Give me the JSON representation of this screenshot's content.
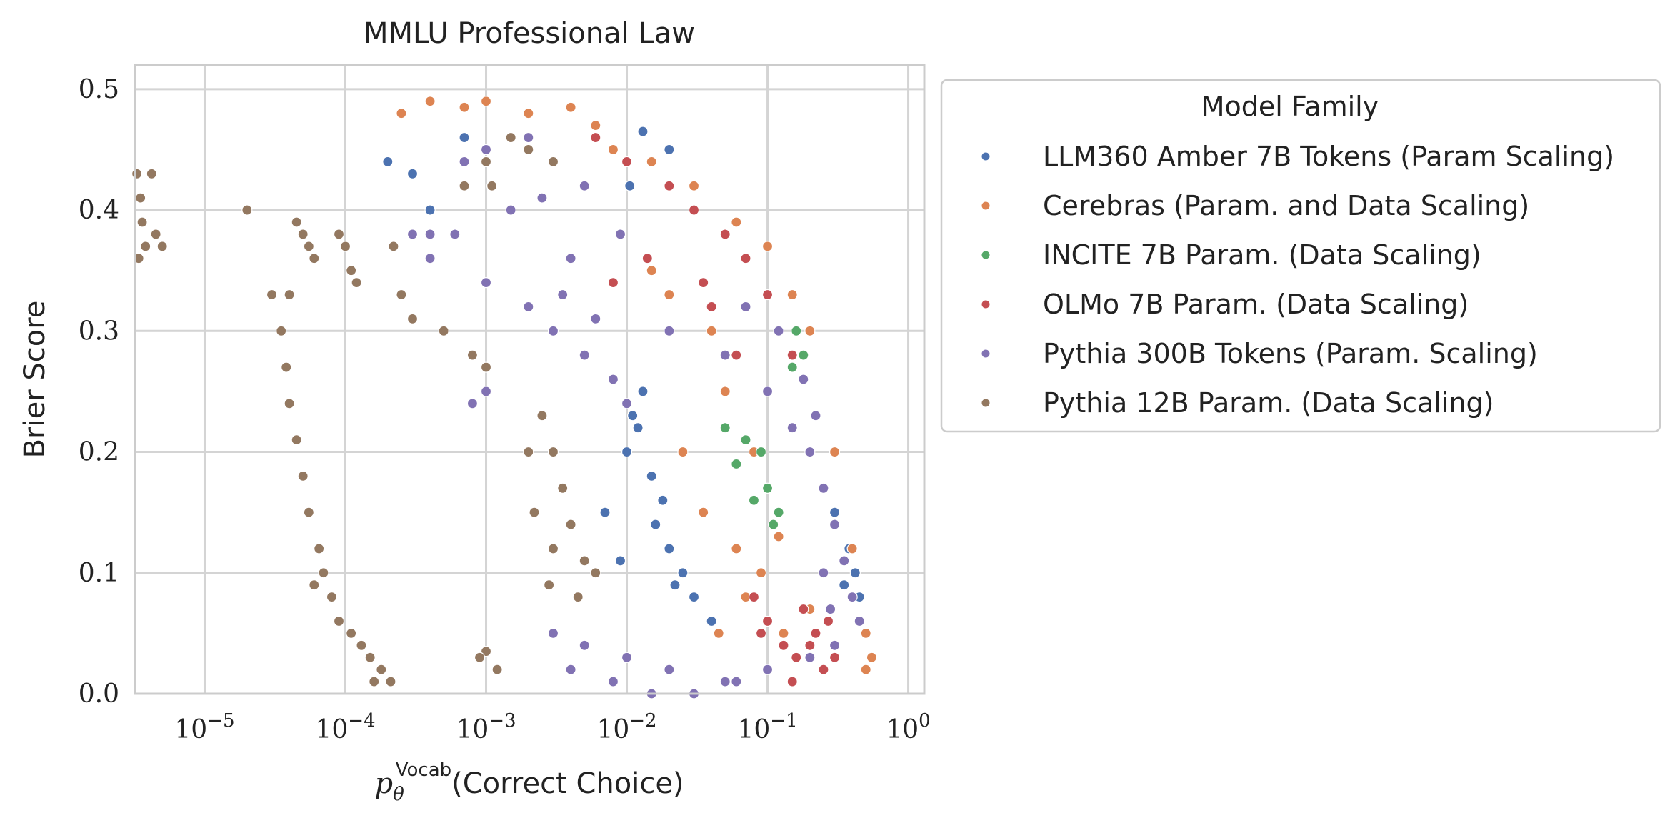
{
  "chart_data": {
    "type": "scatter",
    "title": "MMLU Professional Law",
    "xlabel": {
      "symbol": "p",
      "subscript": "θ",
      "superscript": "Vocab",
      "text": "(Correct Choice)"
    },
    "ylabel": "Brier Score",
    "xscale": "log",
    "xlim": [
      3.2e-06,
      1.3
    ],
    "ylim": [
      0.0,
      0.52
    ],
    "x_ticks": [
      {
        "value": 1e-05,
        "base": "10",
        "exp": "−5"
      },
      {
        "value": 0.0001,
        "base": "10",
        "exp": "−4"
      },
      {
        "value": 0.001,
        "base": "10",
        "exp": "−3"
      },
      {
        "value": 0.01,
        "base": "10",
        "exp": "−2"
      },
      {
        "value": 0.1,
        "base": "10",
        "exp": "−1"
      },
      {
        "value": 1,
        "base": "10",
        "exp": "0"
      }
    ],
    "y_ticks": [
      {
        "value": 0.0,
        "label": "0.0"
      },
      {
        "value": 0.1,
        "label": "0.1"
      },
      {
        "value": 0.2,
        "label": "0.2"
      },
      {
        "value": 0.3,
        "label": "0.3"
      },
      {
        "value": 0.4,
        "label": "0.4"
      },
      {
        "value": 0.5,
        "label": "0.5"
      }
    ],
    "grid": true,
    "legend": {
      "title": "Model Family",
      "placement": "outside-right"
    },
    "series": [
      {
        "name": "LLM360 Amber 7B Tokens (Param Scaling)",
        "color": "#4c72b0",
        "points": [
          [
            0.0105,
            0.42
          ],
          [
            0.0002,
            0.44
          ],
          [
            0.0003,
            0.43
          ],
          [
            0.0004,
            0.4
          ],
          [
            0.0007,
            0.46
          ],
          [
            0.013,
            0.465
          ],
          [
            0.02,
            0.45
          ],
          [
            0.012,
            0.22
          ],
          [
            0.015,
            0.18
          ],
          [
            0.01,
            0.2
          ],
          [
            0.018,
            0.16
          ],
          [
            0.02,
            0.12
          ],
          [
            0.025,
            0.1
          ],
          [
            0.03,
            0.08
          ],
          [
            0.016,
            0.14
          ],
          [
            0.013,
            0.25
          ],
          [
            0.011,
            0.23
          ],
          [
            0.022,
            0.09
          ],
          [
            0.007,
            0.15
          ],
          [
            0.009,
            0.11
          ],
          [
            0.35,
            0.09
          ],
          [
            0.42,
            0.1
          ],
          [
            0.45,
            0.08
          ],
          [
            0.38,
            0.12
          ],
          [
            0.3,
            0.15
          ],
          [
            0.04,
            0.06
          ]
        ]
      },
      {
        "name": "Cerebras (Param. and Data Scaling)",
        "color": "#dd8452",
        "points": [
          [
            0.00025,
            0.48
          ],
          [
            0.0004,
            0.49
          ],
          [
            0.0007,
            0.485
          ],
          [
            0.001,
            0.49
          ],
          [
            0.002,
            0.48
          ],
          [
            0.004,
            0.485
          ],
          [
            0.006,
            0.47
          ],
          [
            0.008,
            0.45
          ],
          [
            0.015,
            0.44
          ],
          [
            0.03,
            0.42
          ],
          [
            0.06,
            0.39
          ],
          [
            0.1,
            0.37
          ],
          [
            0.15,
            0.33
          ],
          [
            0.2,
            0.3
          ],
          [
            0.04,
            0.3
          ],
          [
            0.05,
            0.25
          ],
          [
            0.08,
            0.2
          ],
          [
            0.1,
            0.17
          ],
          [
            0.12,
            0.13
          ],
          [
            0.09,
            0.1
          ],
          [
            0.06,
            0.12
          ],
          [
            0.035,
            0.15
          ],
          [
            0.025,
            0.2
          ],
          [
            0.3,
            0.2
          ],
          [
            0.4,
            0.12
          ],
          [
            0.5,
            0.05
          ],
          [
            0.55,
            0.03
          ],
          [
            0.5,
            0.02
          ],
          [
            0.2,
            0.07
          ],
          [
            0.07,
            0.08
          ],
          [
            0.045,
            0.05
          ],
          [
            0.13,
            0.05
          ],
          [
            0.015,
            0.35
          ],
          [
            0.02,
            0.33
          ]
        ]
      },
      {
        "name": "INCITE 7B Param. (Data Scaling)",
        "color": "#55a868",
        "points": [
          [
            0.05,
            0.22
          ],
          [
            0.07,
            0.21
          ],
          [
            0.09,
            0.2
          ],
          [
            0.08,
            0.16
          ],
          [
            0.1,
            0.17
          ],
          [
            0.12,
            0.15
          ],
          [
            0.11,
            0.14
          ],
          [
            0.15,
            0.27
          ],
          [
            0.16,
            0.3
          ],
          [
            0.18,
            0.28
          ],
          [
            0.06,
            0.19
          ]
        ]
      },
      {
        "name": "OLMo 7B Param. (Data Scaling)",
        "color": "#c44e52",
        "points": [
          [
            0.006,
            0.46
          ],
          [
            0.01,
            0.44
          ],
          [
            0.02,
            0.42
          ],
          [
            0.03,
            0.4
          ],
          [
            0.05,
            0.38
          ],
          [
            0.07,
            0.36
          ],
          [
            0.1,
            0.33
          ],
          [
            0.12,
            0.3
          ],
          [
            0.15,
            0.28
          ],
          [
            0.04,
            0.32
          ],
          [
            0.06,
            0.28
          ],
          [
            0.035,
            0.34
          ],
          [
            0.1,
            0.06
          ],
          [
            0.13,
            0.04
          ],
          [
            0.16,
            0.03
          ],
          [
            0.2,
            0.04
          ],
          [
            0.25,
            0.02
          ],
          [
            0.3,
            0.03
          ],
          [
            0.08,
            0.08
          ],
          [
            0.09,
            0.05
          ],
          [
            0.18,
            0.07
          ],
          [
            0.22,
            0.05
          ],
          [
            0.15,
            0.01
          ],
          [
            0.27,
            0.06
          ],
          [
            0.014,
            0.36
          ],
          [
            0.008,
            0.34
          ]
        ]
      },
      {
        "name": "Pythia 300B Tokens (Param. Scaling)",
        "color": "#8172b3",
        "points": [
          [
            0.0007,
            0.44
          ],
          [
            0.001,
            0.45
          ],
          [
            0.002,
            0.46
          ],
          [
            0.003,
            0.44
          ],
          [
            0.005,
            0.42
          ],
          [
            0.0006,
            0.38
          ],
          [
            0.0003,
            0.38
          ],
          [
            0.0004,
            0.36
          ],
          [
            0.001,
            0.34
          ],
          [
            0.002,
            0.32
          ],
          [
            0.003,
            0.3
          ],
          [
            0.005,
            0.28
          ],
          [
            0.008,
            0.26
          ],
          [
            0.001,
            0.25
          ],
          [
            0.0008,
            0.24
          ],
          [
            0.01,
            0.24
          ],
          [
            0.02,
            0.3
          ],
          [
            0.05,
            0.28
          ],
          [
            0.1,
            0.25
          ],
          [
            0.15,
            0.22
          ],
          [
            0.2,
            0.2
          ],
          [
            0.25,
            0.17
          ],
          [
            0.3,
            0.14
          ],
          [
            0.35,
            0.11
          ],
          [
            0.4,
            0.08
          ],
          [
            0.45,
            0.06
          ],
          [
            0.3,
            0.04
          ],
          [
            0.2,
            0.03
          ],
          [
            0.1,
            0.02
          ],
          [
            0.05,
            0.01
          ],
          [
            0.02,
            0.02
          ],
          [
            0.01,
            0.03
          ],
          [
            0.005,
            0.04
          ],
          [
            0.003,
            0.05
          ],
          [
            0.004,
            0.02
          ],
          [
            0.008,
            0.01
          ],
          [
            0.015,
            0.0
          ],
          [
            0.03,
            0.0
          ],
          [
            0.06,
            0.01
          ],
          [
            0.12,
            0.3
          ],
          [
            0.18,
            0.26
          ],
          [
            0.22,
            0.23
          ],
          [
            0.07,
            0.32
          ],
          [
            0.0025,
            0.41
          ],
          [
            0.004,
            0.36
          ],
          [
            0.0015,
            0.4
          ],
          [
            0.0035,
            0.33
          ],
          [
            0.006,
            0.31
          ],
          [
            0.009,
            0.38
          ],
          [
            0.25,
            0.1
          ],
          [
            0.28,
            0.07
          ],
          [
            0.0004,
            0.38
          ]
        ]
      },
      {
        "name": "Pythia 12B Param. (Data Scaling)",
        "color": "#937860",
        "points": [
          [
            3.3e-06,
            0.43
          ],
          [
            3.5e-06,
            0.41
          ],
          [
            3.6e-06,
            0.39
          ],
          [
            3.8e-06,
            0.37
          ],
          [
            4.2e-06,
            0.43
          ],
          [
            4.5e-06,
            0.38
          ],
          [
            3.4e-06,
            0.36
          ],
          [
            5e-06,
            0.37
          ],
          [
            2e-05,
            0.4
          ],
          [
            5e-05,
            0.38
          ],
          [
            5.5e-05,
            0.37
          ],
          [
            6e-05,
            0.36
          ],
          [
            4.5e-05,
            0.39
          ],
          [
            0.0001,
            0.37
          ],
          [
            0.00011,
            0.35
          ],
          [
            9e-05,
            0.38
          ],
          [
            0.00012,
            0.34
          ],
          [
            3e-05,
            0.33
          ],
          [
            3.5e-05,
            0.3
          ],
          [
            3.8e-05,
            0.27
          ],
          [
            4e-05,
            0.24
          ],
          [
            4.5e-05,
            0.21
          ],
          [
            5e-05,
            0.18
          ],
          [
            5.5e-05,
            0.15
          ],
          [
            6.5e-05,
            0.12
          ],
          [
            7e-05,
            0.1
          ],
          [
            8e-05,
            0.08
          ],
          [
            9e-05,
            0.06
          ],
          [
            0.00011,
            0.05
          ],
          [
            0.00013,
            0.04
          ],
          [
            0.00015,
            0.03
          ],
          [
            0.00018,
            0.02
          ],
          [
            0.00021,
            0.01
          ],
          [
            0.00016,
            0.01
          ],
          [
            4e-05,
            0.33
          ],
          [
            6e-05,
            0.09
          ],
          [
            0.00025,
            0.33
          ],
          [
            0.0003,
            0.31
          ],
          [
            0.0005,
            0.3
          ],
          [
            0.0008,
            0.28
          ],
          [
            0.001,
            0.27
          ],
          [
            0.0007,
            0.42
          ],
          [
            0.001,
            0.44
          ],
          [
            0.0015,
            0.46
          ],
          [
            0.002,
            0.45
          ],
          [
            0.003,
            0.44
          ],
          [
            0.0025,
            0.23
          ],
          [
            0.003,
            0.2
          ],
          [
            0.0035,
            0.17
          ],
          [
            0.004,
            0.14
          ],
          [
            0.005,
            0.11
          ],
          [
            0.0045,
            0.08
          ],
          [
            0.003,
            0.12
          ],
          [
            0.0022,
            0.15
          ],
          [
            0.0028,
            0.09
          ],
          [
            0.002,
            0.2
          ],
          [
            0.006,
            0.1
          ],
          [
            0.001,
            0.035
          ],
          [
            0.0012,
            0.02
          ],
          [
            0.0009,
            0.03
          ],
          [
            0.00022,
            0.37
          ],
          [
            0.0011,
            0.42
          ]
        ]
      }
    ]
  }
}
